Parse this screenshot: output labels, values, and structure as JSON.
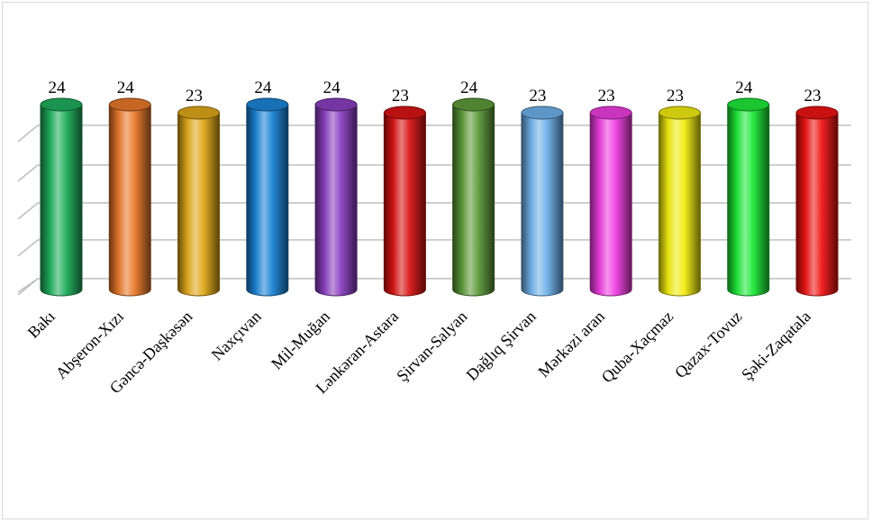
{
  "chart_data": {
    "type": "bar",
    "title": "",
    "xlabel": "",
    "ylabel": "",
    "categories": [
      "Bakı",
      "Abşeron-Xızı",
      "Gəncə-Daşkəsən",
      "Naxçıvan",
      "Mil-Muğan",
      "Lənkəran-Astara",
      "Şirvan-Salyan",
      "Dağlıq Şirvan",
      "Mərkəzi  aran",
      "Quba-Xaçmaz",
      "Qazax-Tovuz",
      "Şəki-Zaqatala"
    ],
    "values": [
      24,
      24,
      23,
      24,
      24,
      23,
      24,
      23,
      23,
      23,
      24,
      23
    ],
    "value_labels": [
      "24",
      "24",
      "23",
      "24",
      "24",
      "23",
      "24",
      "23",
      "23",
      "23",
      "24",
      "23"
    ],
    "colors": [
      "#1fae5c",
      "#e8782a",
      "#e0a81a",
      "#1c84d6",
      "#8a3fc0",
      "#d81414",
      "#5d9a3a",
      "#6fb0ea",
      "#ee3ee0",
      "#f0ec10",
      "#1ee838",
      "#ee1414"
    ],
    "style": "3d-cylinder",
    "gridlines": true,
    "axis_range_hint": [
      0,
      24
    ]
  }
}
